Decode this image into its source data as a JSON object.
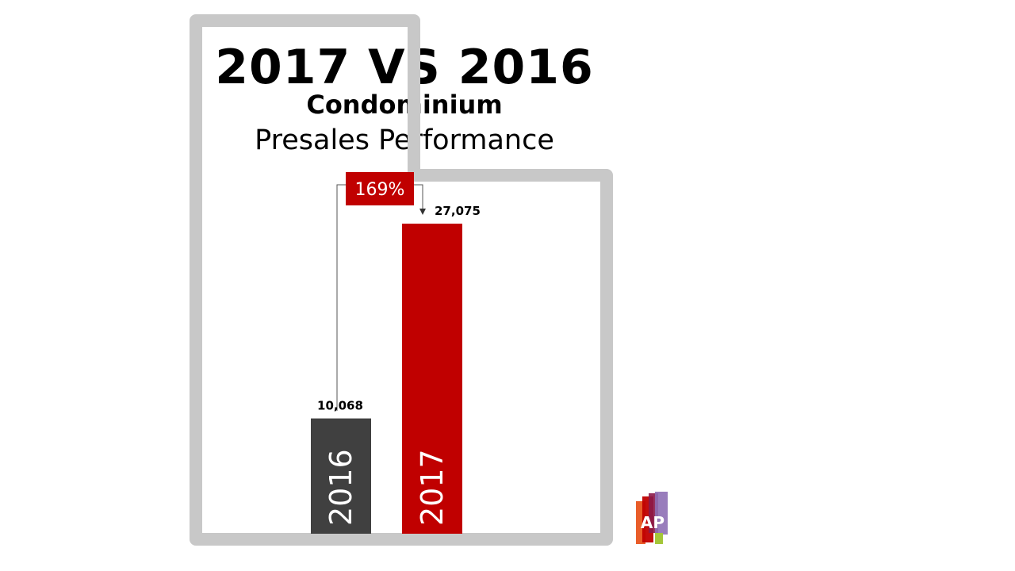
{
  "chart_data": {
    "type": "bar",
    "title": "2017 VS 2016",
    "subtitle": "Condominium",
    "subtitle2": "Presales Performance",
    "categories": [
      "2016",
      "2017"
    ],
    "values": [
      10068,
      27075
    ],
    "value_labels": [
      "10,068",
      "27,075"
    ],
    "ylim": [
      0,
      27075
    ],
    "growth_label": "169%",
    "grid": false,
    "colors": [
      "#404040",
      "#c00000"
    ]
  },
  "logo": {
    "text": "AP",
    "colors": [
      "#e8541e",
      "#c00000",
      "#8b1a4a",
      "#8e6fb5",
      "#a4c639"
    ]
  }
}
